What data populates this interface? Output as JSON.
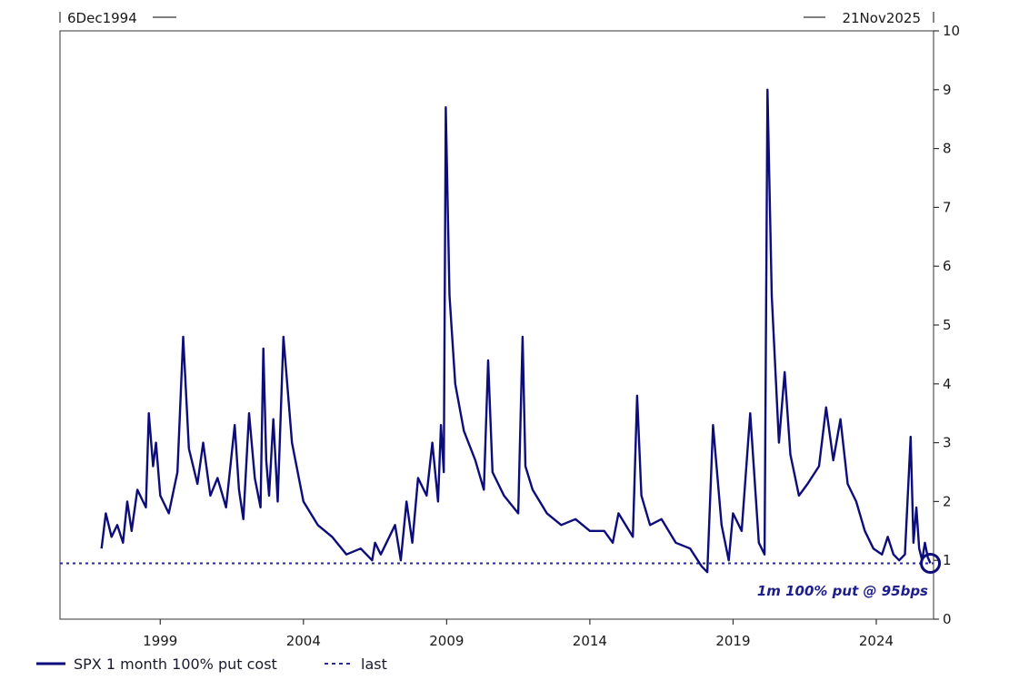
{
  "chart_data": {
    "type": "line",
    "title": "",
    "range_start_label": "6Dec1994",
    "range_end_label": "21Nov2025",
    "x_tick_labels": [
      "1999",
      "2004",
      "2009",
      "2014",
      "2019",
      "2024"
    ],
    "x_tick_values": [
      1999,
      2004,
      2009,
      2014,
      2019,
      2024
    ],
    "xlim": [
      1995.5,
      2026.0
    ],
    "ylim": [
      0,
      10
    ],
    "y_ticks": [
      "0",
      "1",
      "2",
      "3",
      "4",
      "5",
      "6",
      "7",
      "8",
      "9",
      "10"
    ],
    "y_axis_side": "right",
    "grid": false,
    "legend_position": "bottom-left",
    "colors": {
      "series": "#0c0c7a",
      "last_line": "#2a2a9a",
      "annotation": "#1e1e8c"
    },
    "series": [
      {
        "name": "SPX 1 month 100% put cost",
        "style": "solid",
        "x": [
          1996.95,
          1997.1,
          1997.3,
          1997.5,
          1997.7,
          1997.85,
          1998.0,
          1998.2,
          1998.5,
          1998.6,
          1998.75,
          1998.85,
          1999.0,
          1999.3,
          1999.6,
          1999.8,
          2000.0,
          2000.3,
          2000.5,
          2000.75,
          2001.0,
          2001.3,
          2001.6,
          2001.75,
          2001.9,
          2002.1,
          2002.3,
          2002.5,
          2002.6,
          2002.7,
          2002.8,
          2002.95,
          2003.1,
          2003.3,
          2003.6,
          2004.0,
          2004.5,
          2005.0,
          2005.5,
          2006.0,
          2006.4,
          2006.5,
          2006.7,
          2007.0,
          2007.2,
          2007.4,
          2007.6,
          2007.8,
          2008.0,
          2008.3,
          2008.5,
          2008.7,
          2008.8,
          2008.9,
          2008.97,
          2009.1,
          2009.3,
          2009.6,
          2010.0,
          2010.3,
          2010.45,
          2010.6,
          2011.0,
          2011.5,
          2011.65,
          2011.75,
          2012.0,
          2012.5,
          2013.0,
          2013.5,
          2014.0,
          2014.5,
          2014.8,
          2015.0,
          2015.5,
          2015.65,
          2015.8,
          2016.1,
          2016.5,
          2017.0,
          2017.5,
          2017.9,
          2018.1,
          2018.3,
          2018.6,
          2018.85,
          2019.0,
          2019.3,
          2019.6,
          2019.9,
          2020.1,
          2020.2,
          2020.35,
          2020.6,
          2020.8,
          2021.0,
          2021.3,
          2021.6,
          2022.0,
          2022.25,
          2022.5,
          2022.75,
          2023.0,
          2023.3,
          2023.6,
          2023.9,
          2024.2,
          2024.4,
          2024.6,
          2024.8,
          2025.0,
          2025.2,
          2025.3,
          2025.4,
          2025.5,
          2025.6,
          2025.7,
          2025.8,
          2025.89
        ],
        "y": [
          1.2,
          1.8,
          1.4,
          1.6,
          1.3,
          2.0,
          1.5,
          2.2,
          1.9,
          3.5,
          2.6,
          3.0,
          2.1,
          1.8,
          2.5,
          4.8,
          2.9,
          2.3,
          3.0,
          2.1,
          2.4,
          1.9,
          3.3,
          2.2,
          1.7,
          3.5,
          2.4,
          1.9,
          4.6,
          2.7,
          2.1,
          3.4,
          2.0,
          4.8,
          3.0,
          2.0,
          1.6,
          1.4,
          1.1,
          1.2,
          1.0,
          1.3,
          1.1,
          1.4,
          1.6,
          1.0,
          2.0,
          1.3,
          2.4,
          2.1,
          3.0,
          2.0,
          3.3,
          2.5,
          8.7,
          5.5,
          4.0,
          3.2,
          2.7,
          2.2,
          4.4,
          2.5,
          2.1,
          1.8,
          4.8,
          2.6,
          2.2,
          1.8,
          1.6,
          1.7,
          1.5,
          1.5,
          1.3,
          1.8,
          1.4,
          3.8,
          2.1,
          1.6,
          1.7,
          1.3,
          1.2,
          0.9,
          0.8,
          3.3,
          1.6,
          1.0,
          1.8,
          1.5,
          3.5,
          1.3,
          1.1,
          9.0,
          5.5,
          3.0,
          4.2,
          2.8,
          2.1,
          2.3,
          2.6,
          3.6,
          2.7,
          3.4,
          2.3,
          2.0,
          1.5,
          1.2,
          1.1,
          1.4,
          1.1,
          1.0,
          1.1,
          3.1,
          1.3,
          1.9,
          1.2,
          1.0,
          1.3,
          1.05,
          0.95
        ]
      },
      {
        "name": "last",
        "style": "dotted",
        "value": 0.95
      }
    ],
    "annotation": {
      "text": "1m 100% put @ 95bps",
      "x": 2025.89,
      "y": 0.95
    }
  },
  "legend": {
    "items": [
      {
        "label": "SPX 1 month 100% put cost",
        "style": "solid"
      },
      {
        "label": "last",
        "style": "dotted"
      }
    ]
  }
}
